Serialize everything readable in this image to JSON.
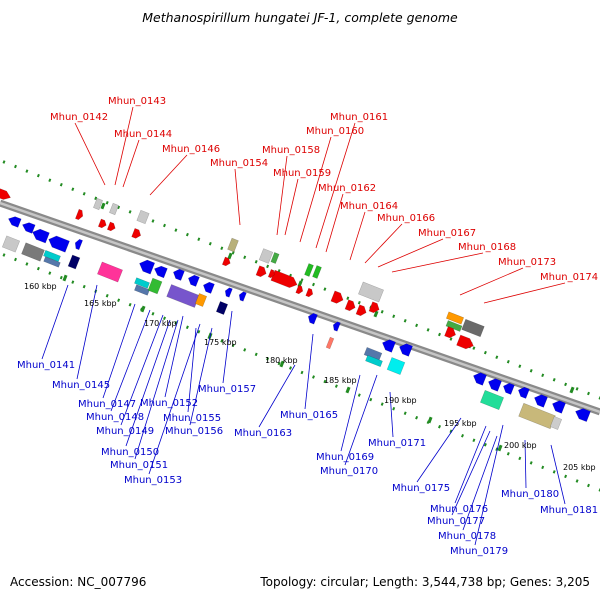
{
  "title": "Methanospirillum hungatei JF-1, complete genome",
  "footer": {
    "accession": "Accession: NC_007796",
    "summary": "Topology: circular; Length: 3,544,738 bp; Genes: 3,205"
  },
  "colors": {
    "forward_label": "#dd0000",
    "reverse_label": "#0000cc",
    "backbone": "#999999",
    "tick": "#228b22"
  },
  "scale_labels": [
    "160 kbp",
    "165 kbp",
    "170 kbp",
    "175 kbp",
    "180 kbp",
    "185 kbp",
    "190 kbp",
    "195 kbp",
    "200 kbp",
    "205 kbp"
  ],
  "forward_labels": [
    "Mhun_0142",
    "Mhun_0143",
    "Mhun_0144",
    "Mhun_0146",
    "Mhun_0154",
    "Mhun_0158",
    "Mhun_0159",
    "Mhun_0160",
    "Mhun_0161",
    "Mhun_0162",
    "Mhun_0164",
    "Mhun_0166",
    "Mhun_0167",
    "Mhun_0168",
    "Mhun_0173",
    "Mhun_0174"
  ],
  "reverse_labels": [
    "Mhun_0141",
    "Mhun_0145",
    "Mhun_0147",
    "Mhun_0148",
    "Mhun_0149",
    "Mhun_0150",
    "Mhun_0151",
    "Mhun_0152",
    "Mhun_0153",
    "Mhun_0155",
    "Mhun_0156",
    "Mhun_0157",
    "Mhun_0163",
    "Mhun_0165",
    "Mhun_0169",
    "Mhun_0170",
    "Mhun_0171",
    "Mhun_0175",
    "Mhun_0176",
    "Mhun_0177",
    "Mhun_0178",
    "Mhun_0179",
    "Mhun_0180",
    "Mhun_0181"
  ]
}
